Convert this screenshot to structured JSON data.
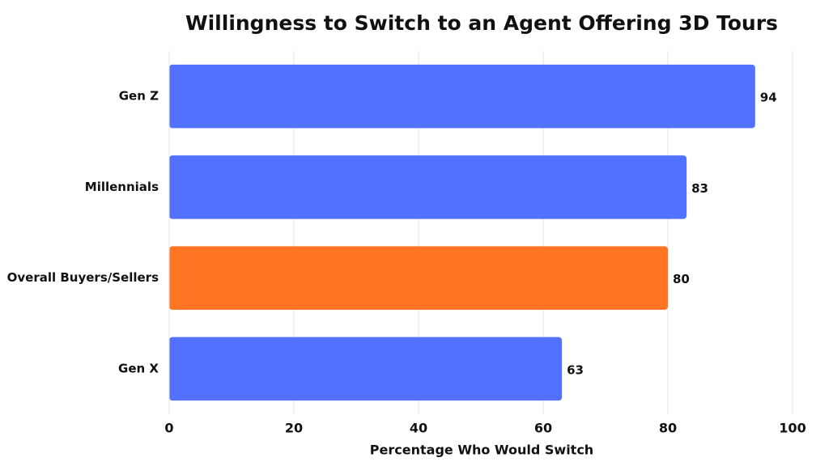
{
  "chart_data": {
    "type": "barh",
    "title": "Willingness to Switch to an Agent Offering 3D Tours",
    "xlabel": "Percentage Who Would Switch",
    "categories": [
      "Gen Z",
      "Millennials",
      "Overall Buyers/Sellers",
      "Gen X"
    ],
    "values": [
      94,
      83,
      80,
      63
    ],
    "colors": [
      "#5271ff",
      "#5271ff",
      "#ff7524",
      "#5271ff"
    ],
    "xlim": [
      0,
      100
    ],
    "xticks": [
      0,
      20,
      40,
      60,
      80,
      100
    ],
    "grid": true
  }
}
